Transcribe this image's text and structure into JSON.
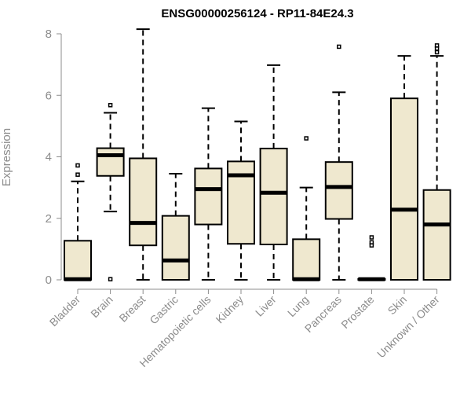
{
  "chart_data": {
    "type": "boxplot",
    "title": "ENSG00000256124 - RP11-84E24.3",
    "ylabel": "Expression",
    "xlabel": "",
    "ylim": [
      0,
      8.2
    ],
    "yticks": [
      0,
      2,
      4,
      6,
      8
    ],
    "box_fill": "#efe8cf",
    "box_stroke": "#000000",
    "axis_color": "#8c8c8c",
    "categories": [
      "Bladder",
      "Brain",
      "Breast",
      "Gastric",
      "Hematopoietic cells",
      "Kidney",
      "Liver",
      "Lung",
      "Pancreas",
      "Prostate",
      "Skin",
      "Unknown / Other"
    ],
    "stats": [
      {
        "min": 0,
        "q1": 0,
        "median": 0.02,
        "q3": 1.27,
        "max": 3.2,
        "outliers": [
          3.42,
          3.72
        ]
      },
      {
        "min": 2.22,
        "q1": 3.38,
        "median": 4.05,
        "q3": 4.28,
        "max": 5.43,
        "outliers": [
          5.68,
          0.02
        ]
      },
      {
        "min": 0,
        "q1": 1.12,
        "median": 1.85,
        "q3": 3.95,
        "max": 8.15,
        "outliers": []
      },
      {
        "min": 0,
        "q1": 0,
        "median": 0.63,
        "q3": 2.08,
        "max": 3.45,
        "outliers": []
      },
      {
        "min": 0,
        "q1": 1.8,
        "median": 2.95,
        "q3": 3.62,
        "max": 5.58,
        "outliers": []
      },
      {
        "min": 0,
        "q1": 1.17,
        "median": 3.4,
        "q3": 3.85,
        "max": 5.15,
        "outliers": []
      },
      {
        "min": 0,
        "q1": 1.15,
        "median": 2.83,
        "q3": 4.27,
        "max": 6.98,
        "outliers": []
      },
      {
        "min": 0,
        "q1": 0,
        "median": 0.02,
        "q3": 1.32,
        "max": 3.0,
        "outliers": [
          4.6
        ]
      },
      {
        "min": 0,
        "q1": 1.98,
        "median": 3.02,
        "q3": 3.83,
        "max": 6.1,
        "outliers": [
          7.58
        ]
      },
      {
        "min": 0,
        "q1": 0,
        "median": 0.02,
        "q3": 0.03,
        "max": 0.05,
        "outliers": [
          1.12,
          1.22,
          1.38
        ]
      },
      {
        "min": 0,
        "q1": 0,
        "median": 2.28,
        "q3": 5.9,
        "max": 7.28,
        "outliers": []
      },
      {
        "min": 0,
        "q1": 0,
        "median": 1.8,
        "q3": 2.92,
        "max": 7.28,
        "outliers": [
          7.4,
          7.52,
          7.62
        ]
      }
    ]
  }
}
